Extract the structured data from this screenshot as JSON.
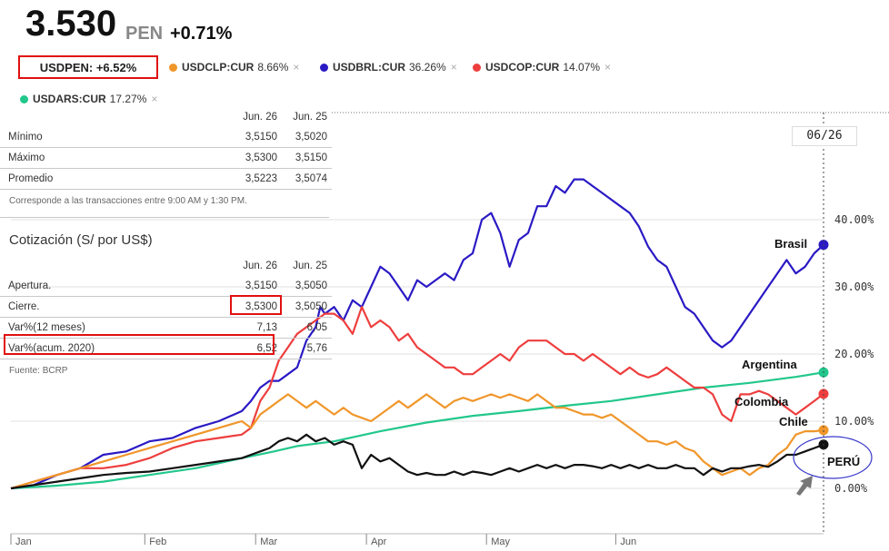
{
  "header": {
    "price": "3.530",
    "currency": "PEN",
    "change": "+0.71%"
  },
  "main_ticker": {
    "label": "USDPEN: +6.52%"
  },
  "legend": [
    {
      "name": "USDCLP:CUR",
      "pct": "8.66%",
      "color": "#f0962a"
    },
    {
      "name": "USDBRL:CUR",
      "pct": "36.26%",
      "color": "#2a1ac4"
    },
    {
      "name": "USDCOP:CUR",
      "pct": "14.07%",
      "color": "#ee3e3e"
    },
    {
      "name": "USDARS:CUR",
      "pct": "17.27%",
      "color": "#22c78c"
    }
  ],
  "close_icon": "×",
  "table1": {
    "headers": [
      "Jun. 26",
      "Jun. 25"
    ],
    "rows": [
      {
        "label": "Mínimo",
        "a": "3,5150",
        "b": "3,5020"
      },
      {
        "label": "Máximo",
        "a": "3,5300",
        "b": "3,5150"
      },
      {
        "label": "Promedio",
        "a": "3,5223",
        "b": "3,5074"
      }
    ],
    "note": "Corresponde a las transacciones entre 9:00 AM y 1:30 PM."
  },
  "table2": {
    "title": "Cotización (S/ por US$)",
    "headers": [
      "Jun. 26",
      "Jun. 25"
    ],
    "rows": [
      {
        "label": "Apertura.",
        "a": "3,5150",
        "b": "3,5050"
      },
      {
        "label": "Cierre.",
        "a": "3,5300",
        "b": "3,5050"
      },
      {
        "label": "Var%(12 meses)",
        "a": "7,13",
        "b": "6,05"
      },
      {
        "label": "Var%(acum. 2020)",
        "a": "6,52",
        "b": "5,76"
      }
    ],
    "source": "Fuente: BCRP"
  },
  "date_badge": "06/26",
  "chart_data": {
    "type": "line",
    "x_ticks": [
      "Jan",
      "Feb",
      "Mar",
      "Apr",
      "May",
      "Jun"
    ],
    "y_ticks": [
      "0.00%",
      "10.00%",
      "20.00%",
      "30.00%",
      "40.00%"
    ],
    "ylim": [
      -3,
      56
    ],
    "annotations": [
      "Brasil",
      "Argentina",
      "Colombia",
      "Chile",
      "PERÚ"
    ],
    "series": [
      {
        "name": "USDARS:CUR",
        "color": "#22c78c",
        "x": [
          0,
          10,
          20,
          30,
          40,
          50,
          57,
          62,
          70,
          80,
          90,
          100,
          110,
          120,
          130,
          140,
          150,
          160,
          170,
          176
        ],
        "y": [
          0,
          0.4,
          1,
          2,
          3,
          4.5,
          5.5,
          6.3,
          7,
          8.5,
          9.8,
          10.8,
          11.5,
          12.3,
          13,
          14,
          15,
          15.7,
          16.6,
          17.27
        ]
      },
      {
        "name": "USDBRL:CUR",
        "color": "#2a1ac4",
        "x": [
          0,
          5,
          10,
          15,
          20,
          25,
          30,
          35,
          40,
          45,
          50,
          52,
          54,
          56,
          58,
          60,
          62,
          64,
          65,
          66,
          67,
          68,
          70,
          72,
          74,
          76,
          78,
          80,
          82,
          84,
          86,
          88,
          90,
          92,
          94,
          96,
          98,
          100,
          102,
          104,
          106,
          108,
          110,
          112,
          114,
          116,
          118,
          120,
          122,
          124,
          126,
          128,
          130,
          132,
          134,
          136,
          138,
          140,
          142,
          144,
          146,
          148,
          150,
          152,
          154,
          156,
          158,
          160,
          162,
          164,
          166,
          168,
          170,
          172,
          174,
          176
        ],
        "y": [
          0,
          0.5,
          2,
          3,
          5,
          5.5,
          7,
          7.5,
          9,
          10,
          11.5,
          13,
          15,
          16,
          16,
          17,
          18,
          22,
          23,
          24,
          27,
          26,
          27,
          25,
          28,
          27,
          30,
          33,
          32,
          30,
          28,
          31,
          30,
          31,
          32,
          31,
          34,
          35,
          40,
          41,
          38,
          33,
          37,
          38,
          42,
          42,
          45,
          44,
          46,
          46,
          45,
          44,
          43,
          42,
          41,
          39,
          36,
          34,
          33,
          30,
          27,
          26,
          24,
          22,
          21,
          22,
          24,
          26,
          28,
          30,
          32,
          34,
          32,
          33,
          35,
          36.26
        ]
      },
      {
        "name": "USDCOP:CUR",
        "color": "#ee3e3e",
        "x": [
          0,
          5,
          10,
          15,
          20,
          25,
          30,
          35,
          40,
          45,
          50,
          52,
          54,
          56,
          58,
          60,
          62,
          64,
          66,
          68,
          70,
          72,
          74,
          76,
          78,
          80,
          82,
          84,
          86,
          88,
          90,
          92,
          94,
          96,
          98,
          100,
          102,
          104,
          106,
          108,
          110,
          112,
          114,
          116,
          118,
          120,
          122,
          124,
          126,
          128,
          130,
          132,
          134,
          136,
          138,
          140,
          142,
          144,
          146,
          148,
          150,
          152,
          154,
          156,
          158,
          160,
          162,
          164,
          166,
          168,
          170,
          172,
          174,
          176
        ],
        "y": [
          0,
          1,
          2,
          3,
          3,
          3.5,
          4.5,
          6,
          7,
          7.5,
          8,
          9,
          13,
          15,
          19,
          21,
          23,
          24,
          25,
          26,
          26,
          25,
          23,
          27,
          24,
          25,
          24,
          22,
          23,
          21,
          20,
          19,
          18,
          18,
          17,
          17,
          18,
          19,
          20,
          19,
          21,
          22,
          22,
          22,
          21,
          20,
          20,
          19,
          20,
          19,
          18,
          17,
          18,
          17,
          16.5,
          17,
          18,
          17,
          16,
          15,
          15,
          14,
          11,
          10,
          14,
          14,
          14.5,
          14,
          13,
          12,
          11,
          12,
          13,
          14.07
        ]
      },
      {
        "name": "USDCLP:CUR",
        "color": "#f0962a",
        "x": [
          0,
          5,
          10,
          15,
          20,
          25,
          30,
          35,
          40,
          45,
          50,
          52,
          54,
          56,
          58,
          60,
          62,
          64,
          66,
          68,
          70,
          72,
          74,
          76,
          78,
          80,
          82,
          84,
          86,
          88,
          90,
          92,
          94,
          96,
          98,
          100,
          102,
          104,
          106,
          108,
          110,
          112,
          114,
          116,
          118,
          120,
          122,
          124,
          126,
          128,
          130,
          132,
          134,
          136,
          138,
          140,
          142,
          144,
          146,
          148,
          150,
          152,
          154,
          156,
          158,
          160,
          162,
          164,
          166,
          168,
          170,
          172,
          174,
          176
        ],
        "y": [
          0,
          1,
          2,
          3,
          4,
          5,
          6,
          7,
          8,
          9,
          10,
          9,
          11,
          12,
          13,
          14,
          13,
          12,
          13,
          12,
          11,
          12,
          11,
          10.5,
          10,
          11,
          12,
          13,
          12,
          13,
          14,
          13,
          12,
          13,
          13.5,
          13,
          13.5,
          14,
          13.5,
          14,
          13.5,
          13,
          14,
          13,
          12,
          12,
          11.5,
          11,
          11,
          10.5,
          11,
          10,
          9,
          8,
          7,
          7,
          6.5,
          7,
          6,
          5.5,
          4,
          3,
          2,
          2.5,
          3,
          2,
          3,
          3.5,
          5,
          6,
          8,
          8.5,
          8.5,
          8.66
        ]
      },
      {
        "name": "PERÚ",
        "color": "#111111",
        "x": [
          0,
          5,
          10,
          15,
          20,
          25,
          30,
          35,
          40,
          45,
          50,
          52,
          54,
          56,
          58,
          60,
          62,
          64,
          66,
          68,
          70,
          72,
          74,
          76,
          78,
          80,
          82,
          84,
          86,
          88,
          90,
          92,
          94,
          96,
          98,
          100,
          102,
          104,
          106,
          108,
          110,
          112,
          114,
          116,
          118,
          120,
          122,
          124,
          126,
          128,
          130,
          132,
          134,
          136,
          138,
          140,
          142,
          144,
          146,
          148,
          150,
          152,
          154,
          156,
          158,
          160,
          162,
          164,
          166,
          168,
          170,
          172,
          174,
          176
        ],
        "y": [
          0,
          0.5,
          1,
          1.5,
          2,
          2.3,
          2.5,
          3,
          3.5,
          4,
          4.5,
          5,
          5.5,
          6,
          7,
          7.5,
          7,
          8,
          7,
          7.5,
          6.5,
          7,
          6.5,
          3,
          5,
          4,
          4.5,
          3.5,
          2.5,
          2,
          2.3,
          2,
          2,
          2.5,
          2,
          2.5,
          2.3,
          2,
          2.5,
          3,
          2.5,
          3,
          3.5,
          3,
          3.5,
          3,
          3.5,
          3.5,
          3.3,
          3,
          3.5,
          3,
          3.5,
          3,
          3.5,
          3,
          3,
          3.5,
          3,
          3,
          2,
          3,
          2.5,
          3,
          3,
          3.3,
          3.5,
          3.2,
          4,
          5,
          5,
          5.5,
          6,
          6.52
        ]
      }
    ]
  }
}
